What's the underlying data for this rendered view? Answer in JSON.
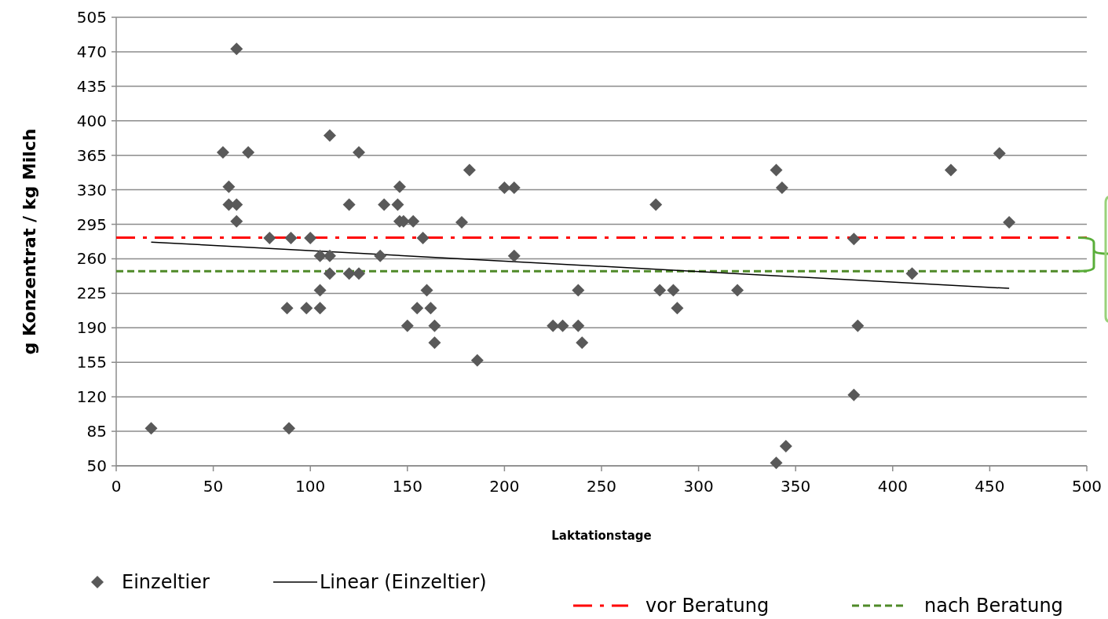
{
  "chart_data": {
    "type": "scatter",
    "xlabel": "Laktationstage",
    "ylabel": "g Konzentrat / kg Milch",
    "xlim": [
      0,
      500
    ],
    "xticks": [
      0,
      50,
      100,
      150,
      200,
      250,
      300,
      350,
      400,
      450,
      500
    ],
    "ylim": [
      50,
      505
    ],
    "yticks": [
      50,
      85,
      120,
      155,
      190,
      225,
      260,
      295,
      330,
      365,
      400,
      435,
      470,
      505
    ],
    "grid": "y",
    "legend": "bottom",
    "series": [
      {
        "name": "Einzeltier",
        "marker": "diamond",
        "color": "#595959",
        "x": [
          18,
          62,
          55,
          68,
          110,
          125,
          58,
          58,
          62,
          62,
          120,
          138,
          146,
          145,
          146,
          148,
          153,
          79,
          90,
          100,
          158,
          105,
          110,
          136,
          110,
          120,
          125,
          105,
          160,
          88,
          98,
          105,
          155,
          162,
          150,
          164,
          164,
          89,
          182,
          200,
          205,
          178,
          205,
          278,
          186,
          225,
          230,
          238,
          240,
          238,
          280,
          287,
          289,
          320,
          340,
          343,
          455,
          430,
          460,
          380,
          410,
          382,
          380,
          345,
          340
        ],
        "values": [
          88,
          473,
          368,
          368,
          385,
          368,
          333,
          315,
          315,
          298,
          315,
          315,
          333,
          315,
          298,
          298,
          298,
          281,
          281,
          281,
          281,
          263,
          263,
          263,
          245,
          245,
          245,
          228,
          228,
          210,
          210,
          210,
          210,
          210,
          192,
          192,
          175,
          88,
          350,
          332,
          332,
          297,
          263,
          315,
          157,
          192,
          192,
          192,
          175,
          228,
          228,
          228,
          210,
          228,
          350,
          332,
          367,
          350,
          297,
          280,
          245,
          192,
          122,
          70,
          53
        ]
      },
      {
        "name": "Linear (Einzeltier)",
        "type": "line",
        "color": "#000000",
        "line_style": "solid",
        "marker": "none",
        "x": [
          18,
          460
        ],
        "values": [
          277,
          230
        ]
      }
    ],
    "ref_lines": [
      {
        "axis": "y",
        "value": 281.5,
        "label": "vor Beratung",
        "color": "#ff0000",
        "line_style": "dashdot"
      },
      {
        "axis": "y",
        "value": 247.5,
        "label": "nach Beratung",
        "color": "#4f8a28",
        "line_style": "dashed"
      }
    ]
  }
}
